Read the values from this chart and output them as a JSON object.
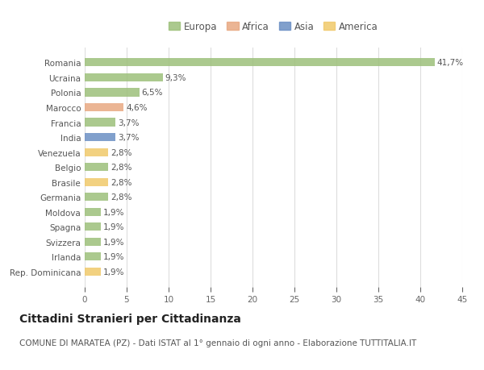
{
  "countries": [
    "Romania",
    "Ucraina",
    "Polonia",
    "Marocco",
    "Francia",
    "India",
    "Venezuela",
    "Belgio",
    "Brasile",
    "Germania",
    "Moldova",
    "Spagna",
    "Svizzera",
    "Irlanda",
    "Rep. Dominicana"
  ],
  "values": [
    41.7,
    9.3,
    6.5,
    4.6,
    3.7,
    3.7,
    2.8,
    2.8,
    2.8,
    2.8,
    1.9,
    1.9,
    1.9,
    1.9,
    1.9
  ],
  "labels": [
    "41,7%",
    "9,3%",
    "6,5%",
    "4,6%",
    "3,7%",
    "3,7%",
    "2,8%",
    "2,8%",
    "2,8%",
    "2,8%",
    "1,9%",
    "1,9%",
    "1,9%",
    "1,9%",
    "1,9%"
  ],
  "continents": [
    "Europa",
    "Europa",
    "Europa",
    "Africa",
    "Europa",
    "Asia",
    "America",
    "Europa",
    "America",
    "Europa",
    "Europa",
    "Europa",
    "Europa",
    "Europa",
    "America"
  ],
  "continent_colors": {
    "Europa": "#9dc07a",
    "Africa": "#e8a882",
    "Asia": "#6b8fc4",
    "America": "#f0c96a"
  },
  "legend_items": [
    "Europa",
    "Africa",
    "Asia",
    "America"
  ],
  "legend_colors": [
    "#9dc07a",
    "#e8a882",
    "#6b8fc4",
    "#f0c96a"
  ],
  "title": "Cittadini Stranieri per Cittadinanza",
  "subtitle": "COMUNE DI MARATEA (PZ) - Dati ISTAT al 1° gennaio di ogni anno - Elaborazione TUTTITALIA.IT",
  "xlim": [
    0,
    45
  ],
  "xticks": [
    0,
    5,
    10,
    15,
    20,
    25,
    30,
    35,
    40,
    45
  ],
  "background_color": "#ffffff",
  "grid_color": "#dddddd",
  "bar_alpha": 0.85,
  "title_fontsize": 10,
  "subtitle_fontsize": 7.5,
  "label_fontsize": 7.5,
  "tick_fontsize": 7.5,
  "legend_fontsize": 8.5,
  "bar_height": 0.55
}
